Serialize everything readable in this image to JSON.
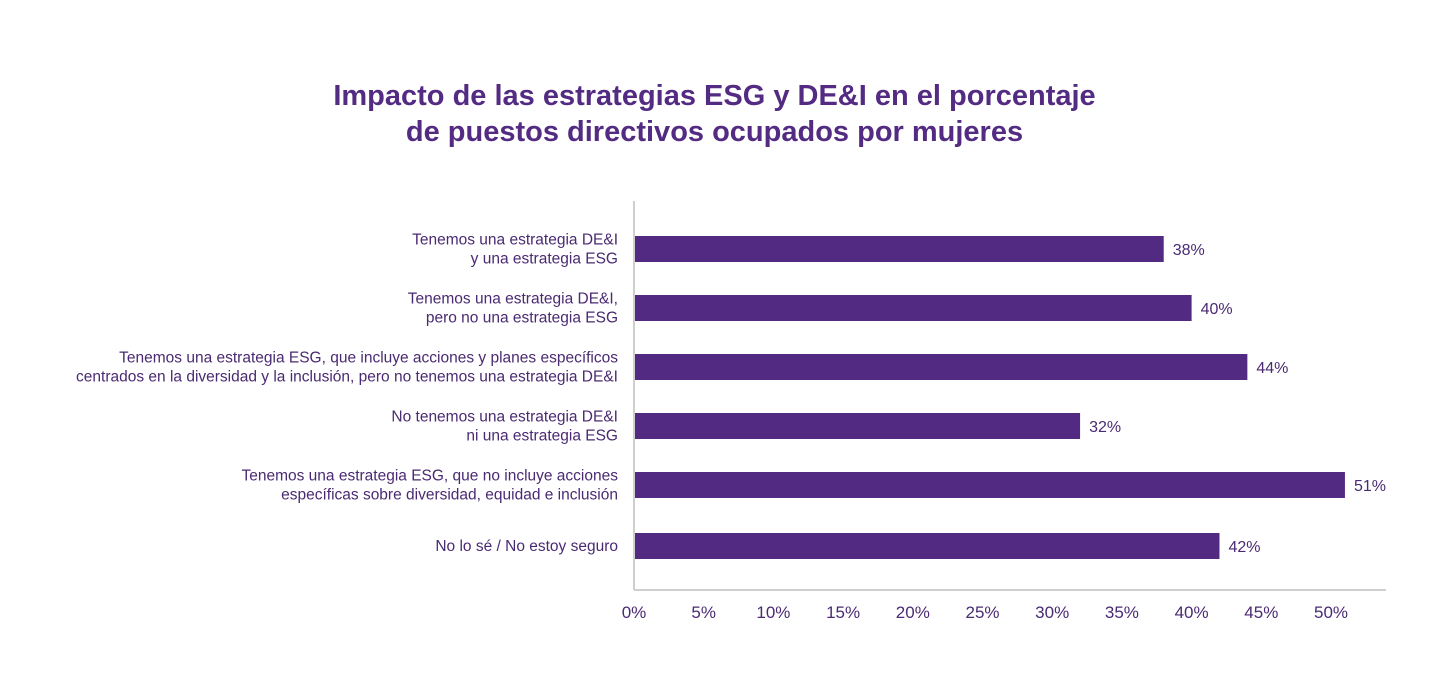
{
  "chart_data": {
    "type": "bar",
    "orientation": "horizontal",
    "title": "Impacto de las estrategias ESG y DE&I en el porcentaje de puestos directivos ocupados por mujeres",
    "title_lines": [
      "Impacto de las estrategias ESG y DE&I en el porcentaje",
      "de puestos directivos ocupados por mujeres"
    ],
    "categories": [
      [
        "Tenemos una estrategia DE&I",
        "y una estrategia ESG"
      ],
      [
        "Tenemos una estrategia DE&I,",
        "pero no una estrategia ESG"
      ],
      [
        "Tenemos una estrategia ESG, que incluye acciones y planes específicos",
        "centrados en la diversidad y la inclusión, pero no tenemos una estrategia DE&I"
      ],
      [
        "No tenemos una estrategia DE&I",
        "ni una estrategia ESG"
      ],
      [
        "Tenemos una estrategia ESG, que no incluye acciones",
        "específicas sobre diversidad, equidad e inclusión"
      ],
      [
        "No lo sé / No estoy seguro"
      ]
    ],
    "values": [
      38,
      40,
      44,
      32,
      51,
      42
    ],
    "value_labels": [
      "38%",
      "40%",
      "44%",
      "32%",
      "51%",
      "42%"
    ],
    "xlabel": "",
    "ylabel": "",
    "xlim": [
      0,
      54
    ],
    "xticks": [
      0,
      5,
      10,
      15,
      20,
      25,
      30,
      35,
      40,
      45,
      50
    ],
    "xtick_labels": [
      "0%",
      "5%",
      "10%",
      "15%",
      "20%",
      "25%",
      "30%",
      "35%",
      "40%",
      "45%",
      "50%"
    ],
    "grid": false,
    "legend": "none",
    "colors": {
      "bar": "#532a81",
      "title": "#542b82",
      "text": "#4a2a72",
      "axis": "#cfcfcf"
    }
  }
}
